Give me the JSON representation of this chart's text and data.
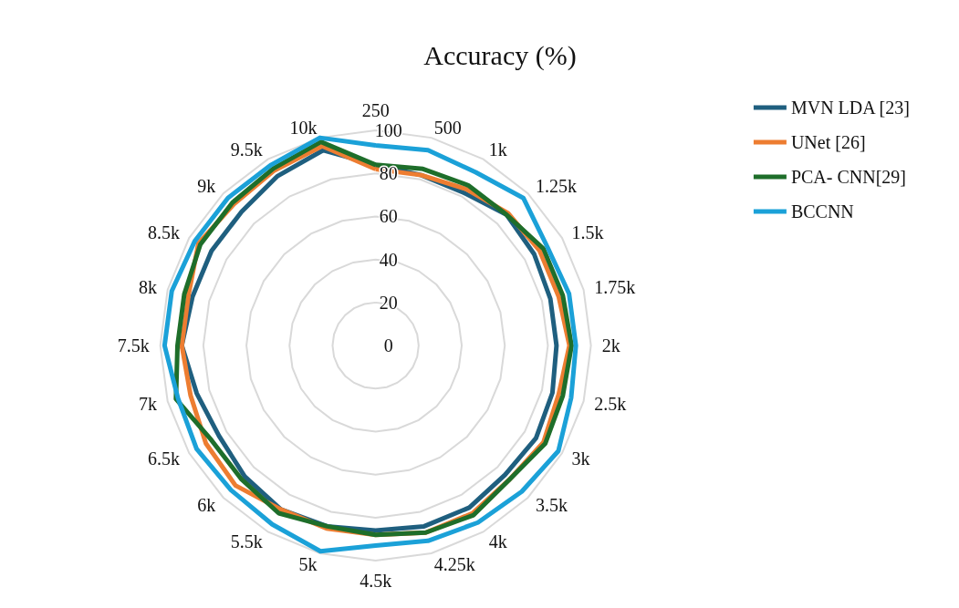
{
  "chart_data": {
    "type": "radar",
    "title": "Accuracy (%)",
    "categories": [
      "250",
      "500",
      "1k",
      "1.25k",
      "1.5k",
      "1.75k",
      "2k",
      "2.5k",
      "3k",
      "3.5k",
      "4k",
      "4.25k",
      "4.5k",
      "5k",
      "5.5k",
      "6k",
      "6.5k",
      "7k",
      "7.5k",
      "8k",
      "8.5k",
      "9k",
      "9.5k",
      "10k"
    ],
    "series": [
      {
        "name": "MVN LDA [23]",
        "color": "#1f5f7f",
        "values": [
          84,
          82,
          82,
          86,
          85,
          84,
          84,
          85,
          86,
          85,
          87,
          87,
          86,
          87,
          88,
          86,
          84,
          86,
          90,
          88,
          88,
          88,
          91,
          94
        ]
      },
      {
        "name": "UNet [26]",
        "color": "#ed7d31",
        "values": [
          82,
          82,
          84,
          87,
          88,
          88,
          90,
          88,
          90,
          88,
          90,
          90,
          88,
          88,
          88,
          92,
          91,
          89,
          90,
          90,
          95,
          93,
          94,
          96
        ]
      },
      {
        "name": "PCA- CNN[29]",
        "color": "#1e6e2a",
        "values": [
          84,
          85,
          86,
          86,
          90,
          90,
          91,
          90,
          91,
          88,
          91,
          90,
          88,
          87,
          90,
          88,
          88,
          96,
          92,
          92,
          94,
          94,
          95,
          98
        ]
      },
      {
        "name": "BCCNN",
        "color": "#1ba1d8",
        "values": [
          93,
          94,
          93,
          97,
          92,
          93,
          93,
          94,
          98,
          96,
          95,
          94,
          93,
          99,
          96,
          95,
          96,
          95,
          98,
          98,
          97,
          97,
          97,
          100
        ]
      }
    ],
    "ylim": [
      0,
      100
    ],
    "yticks": [
      0,
      20,
      40,
      60,
      80,
      100
    ],
    "grid": true,
    "legend": "top right",
    "marker": "none",
    "line_style": "solid"
  }
}
